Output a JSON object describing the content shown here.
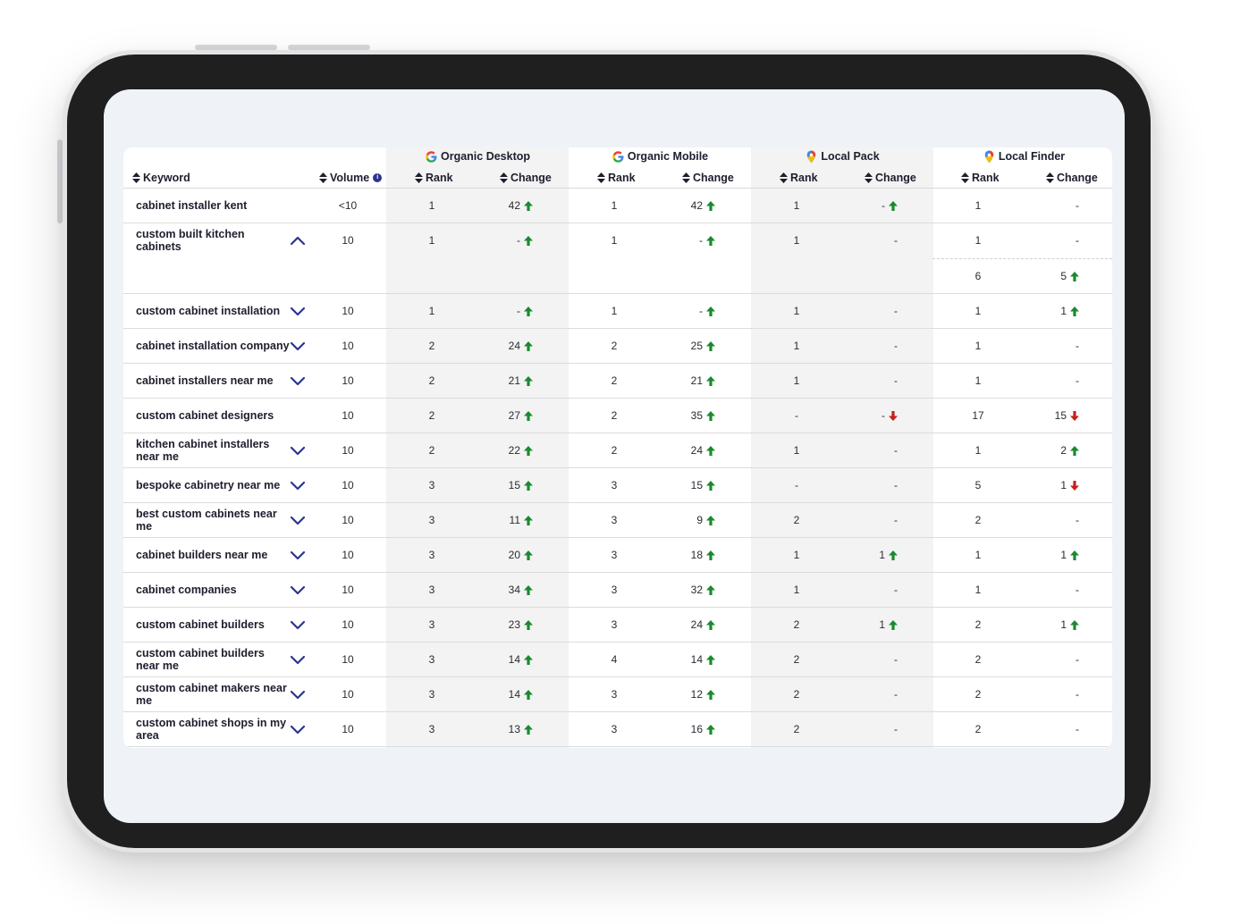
{
  "columns": {
    "keyword": "Keyword",
    "volume": "Volume",
    "rank": "Rank",
    "change": "Change"
  },
  "groups": [
    {
      "title": "Organic Desktop",
      "icon": "google-icon"
    },
    {
      "title": "Organic Mobile",
      "icon": "google-icon"
    },
    {
      "title": "Local Pack",
      "icon": "map-pin-icon"
    },
    {
      "title": "Local Finder",
      "icon": "map-pin-icon"
    }
  ],
  "colors": {
    "up": "#1a8a2e",
    "down": "#c8201b",
    "chevron": "#2b3590"
  },
  "rows": [
    {
      "keyword": "cabinet installer kent",
      "chevron": "none",
      "volume": "<10",
      "cells": [
        [
          "1",
          "42",
          "up"
        ],
        [
          "1",
          "42",
          "up"
        ],
        [
          "1",
          "-",
          "up"
        ],
        [
          "1",
          "-",
          "none"
        ]
      ]
    },
    {
      "keyword": "custom built kitchen cabinets",
      "chevron": "up",
      "volume": "10",
      "cells": [
        [
          "1",
          "-",
          "up"
        ],
        [
          "1",
          "-",
          "up"
        ],
        [
          "1",
          "-",
          "none"
        ],
        [
          "1",
          "-",
          "none"
        ]
      ],
      "sub": [
        "6",
        "5",
        "up"
      ]
    },
    {
      "keyword": "custom cabinet installation",
      "chevron": "down",
      "volume": "10",
      "cells": [
        [
          "1",
          "-",
          "up"
        ],
        [
          "1",
          "-",
          "up"
        ],
        [
          "1",
          "-",
          "none"
        ],
        [
          "1",
          "1",
          "up"
        ]
      ]
    },
    {
      "keyword": "cabinet installation company",
      "chevron": "down",
      "volume": "10",
      "cells": [
        [
          "2",
          "24",
          "up"
        ],
        [
          "2",
          "25",
          "up"
        ],
        [
          "1",
          "-",
          "none"
        ],
        [
          "1",
          "-",
          "none"
        ]
      ]
    },
    {
      "keyword": "cabinet installers near me",
      "chevron": "down",
      "volume": "10",
      "cells": [
        [
          "2",
          "21",
          "up"
        ],
        [
          "2",
          "21",
          "up"
        ],
        [
          "1",
          "-",
          "none"
        ],
        [
          "1",
          "-",
          "none"
        ]
      ]
    },
    {
      "keyword": "custom cabinet designers",
      "chevron": "none",
      "volume": "10",
      "cells": [
        [
          "2",
          "27",
          "up"
        ],
        [
          "2",
          "35",
          "up"
        ],
        [
          "-",
          "-",
          "down"
        ],
        [
          "17",
          "15",
          "down"
        ]
      ]
    },
    {
      "keyword": "kitchen cabinet installers near me",
      "chevron": "down",
      "volume": "10",
      "cells": [
        [
          "2",
          "22",
          "up"
        ],
        [
          "2",
          "24",
          "up"
        ],
        [
          "1",
          "-",
          "none"
        ],
        [
          "1",
          "2",
          "up"
        ]
      ]
    },
    {
      "keyword": "bespoke cabinetry near me",
      "chevron": "down",
      "volume": "10",
      "cells": [
        [
          "3",
          "15",
          "up"
        ],
        [
          "3",
          "15",
          "up"
        ],
        [
          "-",
          "-",
          "none"
        ],
        [
          "5",
          "1",
          "down"
        ]
      ]
    },
    {
      "keyword": "best custom cabinets near me",
      "chevron": "down",
      "volume": "10",
      "cells": [
        [
          "3",
          "11",
          "up"
        ],
        [
          "3",
          "9",
          "up"
        ],
        [
          "2",
          "-",
          "none"
        ],
        [
          "2",
          "-",
          "none"
        ]
      ]
    },
    {
      "keyword": "cabinet builders near me",
      "chevron": "down",
      "volume": "10",
      "cells": [
        [
          "3",
          "20",
          "up"
        ],
        [
          "3",
          "18",
          "up"
        ],
        [
          "1",
          "1",
          "up"
        ],
        [
          "1",
          "1",
          "up"
        ]
      ]
    },
    {
      "keyword": "cabinet companies",
      "chevron": "down",
      "volume": "10",
      "cells": [
        [
          "3",
          "34",
          "up"
        ],
        [
          "3",
          "32",
          "up"
        ],
        [
          "1",
          "-",
          "none"
        ],
        [
          "1",
          "-",
          "none"
        ]
      ]
    },
    {
      "keyword": "custom cabinet builders",
      "chevron": "down",
      "volume": "10",
      "cells": [
        [
          "3",
          "23",
          "up"
        ],
        [
          "3",
          "24",
          "up"
        ],
        [
          "2",
          "1",
          "up"
        ],
        [
          "2",
          "1",
          "up"
        ]
      ]
    },
    {
      "keyword": "custom cabinet builders near me",
      "chevron": "down",
      "volume": "10",
      "cells": [
        [
          "3",
          "14",
          "up"
        ],
        [
          "4",
          "14",
          "up"
        ],
        [
          "2",
          "-",
          "none"
        ],
        [
          "2",
          "-",
          "none"
        ]
      ]
    },
    {
      "keyword": "custom cabinet makers near me",
      "chevron": "down",
      "volume": "10",
      "cells": [
        [
          "3",
          "14",
          "up"
        ],
        [
          "3",
          "12",
          "up"
        ],
        [
          "2",
          "-",
          "none"
        ],
        [
          "2",
          "-",
          "none"
        ]
      ]
    },
    {
      "keyword": "custom cabinet shops in my area",
      "chevron": "down",
      "volume": "10",
      "cells": [
        [
          "3",
          "13",
          "up"
        ],
        [
          "3",
          "16",
          "up"
        ],
        [
          "2",
          "-",
          "none"
        ],
        [
          "2",
          "-",
          "none"
        ]
      ]
    }
  ]
}
